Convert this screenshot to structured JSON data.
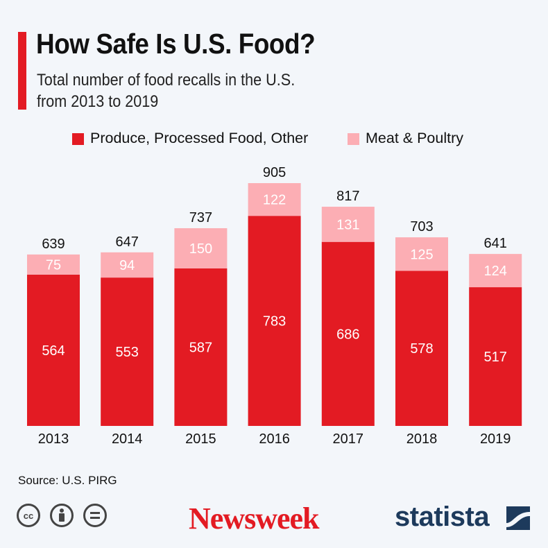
{
  "header": {
    "title": "How Safe Is U.S. Food?",
    "subtitle_line1": "Total number of food recalls in the U.S.",
    "subtitle_line2": "from 2013 to 2019"
  },
  "colors": {
    "accent": "#e31b23",
    "produce": "#e31b23",
    "meat": "#fcaeb4",
    "brand_newsweek": "#e31b23",
    "brand_statista": "#1d3a5c"
  },
  "chart_data": {
    "type": "bar",
    "stacked": true,
    "title": "How Safe Is U.S. Food?",
    "subtitle": "Total number of food recalls in the U.S. from 2013 to 2019",
    "xlabel": "",
    "ylabel": "",
    "ylim": [
      0,
      905
    ],
    "grid": false,
    "legend_position": "top",
    "categories": [
      "2013",
      "2014",
      "2015",
      "2016",
      "2017",
      "2018",
      "2019"
    ],
    "series": [
      {
        "name": "Produce, Processed Food, Other",
        "values": [
          564,
          553,
          587,
          783,
          686,
          578,
          517
        ],
        "color": "#e31b23"
      },
      {
        "name": "Meat & Poultry",
        "values": [
          75,
          94,
          150,
          122,
          131,
          125,
          124
        ],
        "color": "#fcaeb4"
      }
    ],
    "totals": [
      639,
      647,
      737,
      905,
      817,
      703,
      641
    ]
  },
  "footer": {
    "source": "Source: U.S. PIRG",
    "newsweek": "Newsweek",
    "statista": "statista",
    "cc_icons": [
      "cc-icon",
      "by-icon",
      "nd-icon"
    ],
    "cc_text": "cc"
  }
}
